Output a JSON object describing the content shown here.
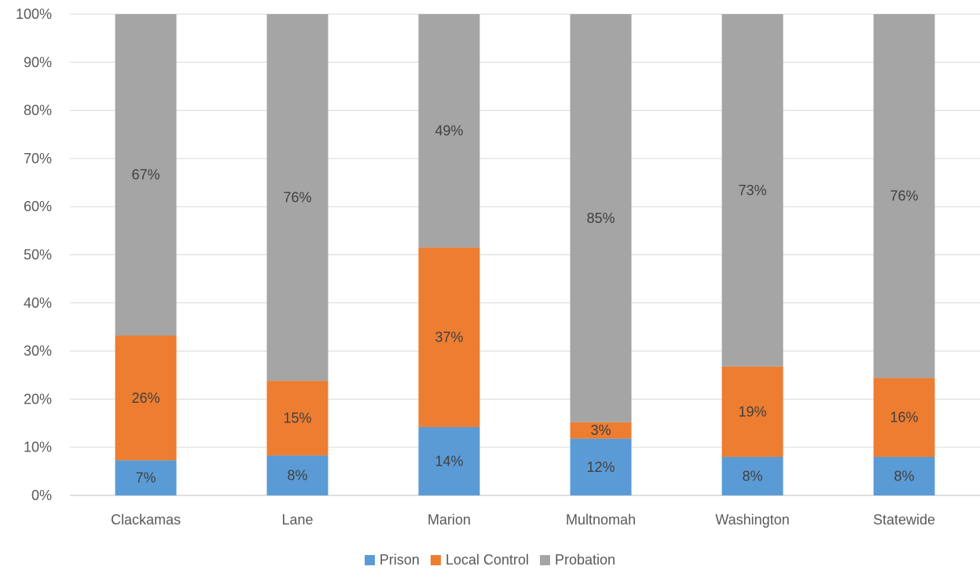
{
  "chart_data": {
    "type": "bar",
    "stacked": true,
    "categories": [
      "Clackamas",
      "Lane",
      "Marion",
      "Multnomah",
      "Washington",
      "Statewide"
    ],
    "series": [
      {
        "name": "Prison",
        "color": "#5b9bd5",
        "values": [
          7.3,
          8.3,
          14.2,
          11.8,
          8.0,
          8.0
        ],
        "labels": [
          "7%",
          "8%",
          "14%",
          "12%",
          "8%",
          "8%"
        ]
      },
      {
        "name": "Local Control",
        "color": "#ed7d31",
        "values": [
          25.9,
          15.5,
          37.3,
          3.4,
          18.8,
          16.4
        ],
        "labels": [
          "26%",
          "15%",
          "37%",
          "3%",
          "19%",
          "16%"
        ]
      },
      {
        "name": "Probation",
        "color": "#a5a5a5",
        "values": [
          66.8,
          76.2,
          48.5,
          84.8,
          73.2,
          75.6
        ],
        "labels": [
          "67%",
          "76%",
          "49%",
          "85%",
          "73%",
          "76%"
        ]
      }
    ],
    "ylim": [
      0,
      100
    ],
    "yticks": [
      "0%",
      "10%",
      "20%",
      "30%",
      "40%",
      "50%",
      "60%",
      "70%",
      "80%",
      "90%",
      "100%"
    ],
    "grid": true,
    "legend_position": "bottom",
    "title": "",
    "xlabel": "",
    "ylabel": ""
  }
}
